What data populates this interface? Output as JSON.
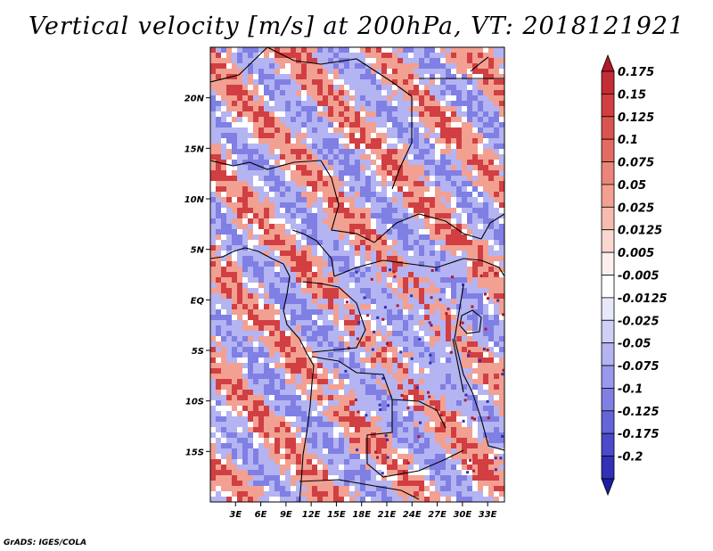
{
  "title": "Vertical velocity [m/s] at 200hPa, VT: 2018121921",
  "credit": "GrADS: IGES/COLA",
  "map": {
    "lon_range": [
      0,
      35
    ],
    "lat_range": [
      -20,
      25
    ],
    "lat_ticks": [
      {
        "value": 20,
        "label": "20N"
      },
      {
        "value": 15,
        "label": "15N"
      },
      {
        "value": 10,
        "label": "10N"
      },
      {
        "value": 5,
        "label": "5N"
      },
      {
        "value": 0,
        "label": "EQ"
      },
      {
        "value": -5,
        "label": "5S"
      },
      {
        "value": -10,
        "label": "10S"
      },
      {
        "value": -15,
        "label": "15S"
      }
    ],
    "lon_ticks": [
      {
        "value": 3,
        "label": "3E"
      },
      {
        "value": 6,
        "label": "6E"
      },
      {
        "value": 9,
        "label": "9E"
      },
      {
        "value": 12,
        "label": "12E"
      },
      {
        "value": 15,
        "label": "15E"
      },
      {
        "value": 18,
        "label": "18E"
      },
      {
        "value": 21,
        "label": "21E"
      },
      {
        "value": 24,
        "label": "24E"
      },
      {
        "value": 27,
        "label": "27E"
      },
      {
        "value": 30,
        "label": "30E"
      },
      {
        "value": 33,
        "label": "33E"
      }
    ]
  },
  "colorbar": {
    "levels": [
      "0.175",
      "0.15",
      "0.125",
      "0.1",
      "0.075",
      "0.05",
      "0.025",
      "0.0125",
      "0.005",
      "-0.005",
      "-0.0125",
      "-0.025",
      "-0.05",
      "-0.075",
      "-0.1",
      "-0.125",
      "-0.175",
      "-0.2"
    ],
    "colors": [
      "#b2182b",
      "#c42c36",
      "#d13f42",
      "#db5550",
      "#e46b63",
      "#ec8579",
      "#f2a092",
      "#f7bcb0",
      "#fbd8cf",
      "#fdf0ec",
      "#ffffff",
      "#e8e8fb",
      "#cfcff7",
      "#b4b4f2",
      "#9999ec",
      "#7f7fe4",
      "#6565da",
      "#4a4acb",
      "#3030b8",
      "#1e1ea0"
    ]
  },
  "field_colors": {
    "strong_up": "#7f7fe4",
    "up": "#b4b4f2",
    "neutral": "#ffffff",
    "down": "#f2a092",
    "strong_down": "#d13f42"
  }
}
